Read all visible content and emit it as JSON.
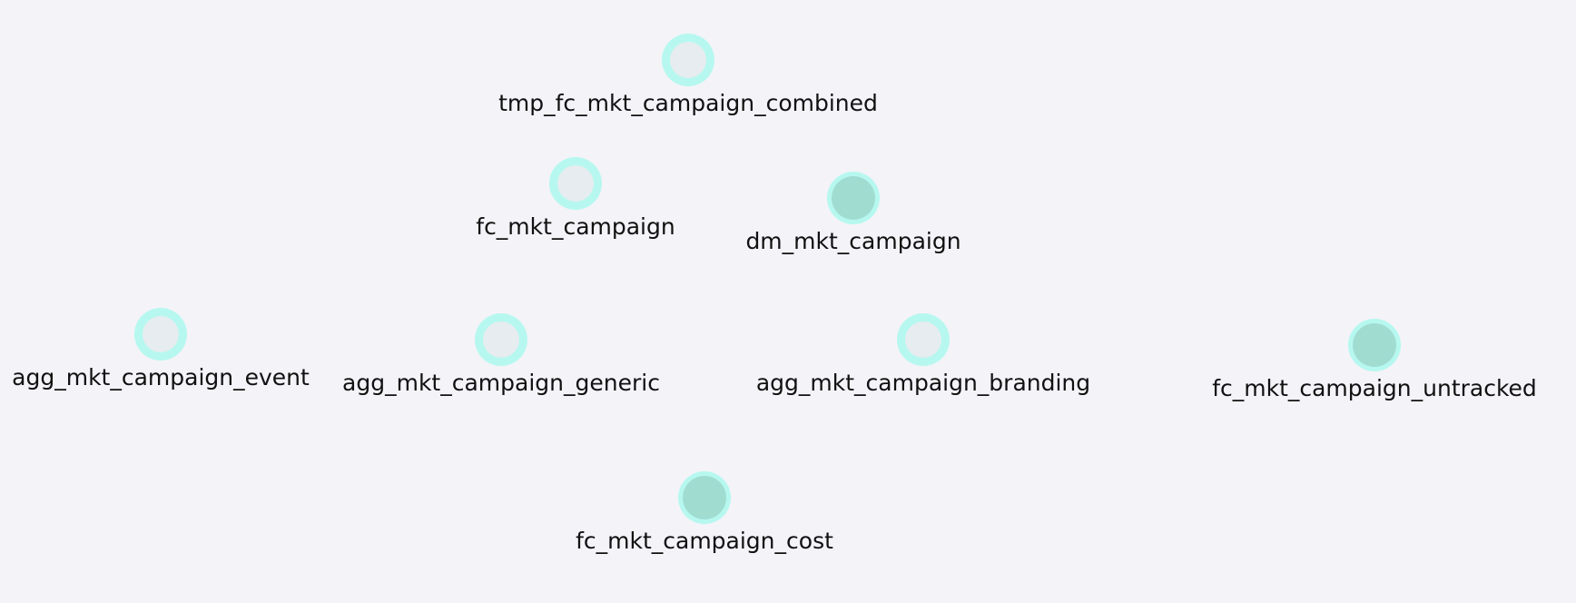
{
  "diagram": {
    "nodes": [
      {
        "id": "tmp_fc_mkt_campaign_combined",
        "label": "tmp_fc_mkt_campaign_combined",
        "filled": false
      },
      {
        "id": "fc_mkt_campaign",
        "label": "fc_mkt_campaign",
        "filled": false
      },
      {
        "id": "dm_mkt_campaign",
        "label": "dm_mkt_campaign",
        "filled": true
      },
      {
        "id": "agg_mkt_campaign_event",
        "label": "agg_mkt_campaign_event",
        "filled": false
      },
      {
        "id": "agg_mkt_campaign_generic",
        "label": "agg_mkt_campaign_generic",
        "filled": false
      },
      {
        "id": "agg_mkt_campaign_branding",
        "label": "agg_mkt_campaign_branding",
        "filled": false
      },
      {
        "id": "fc_mkt_campaign_untracked",
        "label": "fc_mkt_campaign_untracked",
        "filled": true
      },
      {
        "id": "fc_mkt_campaign_cost",
        "label": "fc_mkt_campaign_cost",
        "filled": true
      }
    ]
  },
  "colors": {
    "background": "#f3f3f8",
    "ring": "#b6f8ef",
    "inner_default": "#e6ecef",
    "inner_filled": "#a1dcd1",
    "label": "#111111"
  }
}
